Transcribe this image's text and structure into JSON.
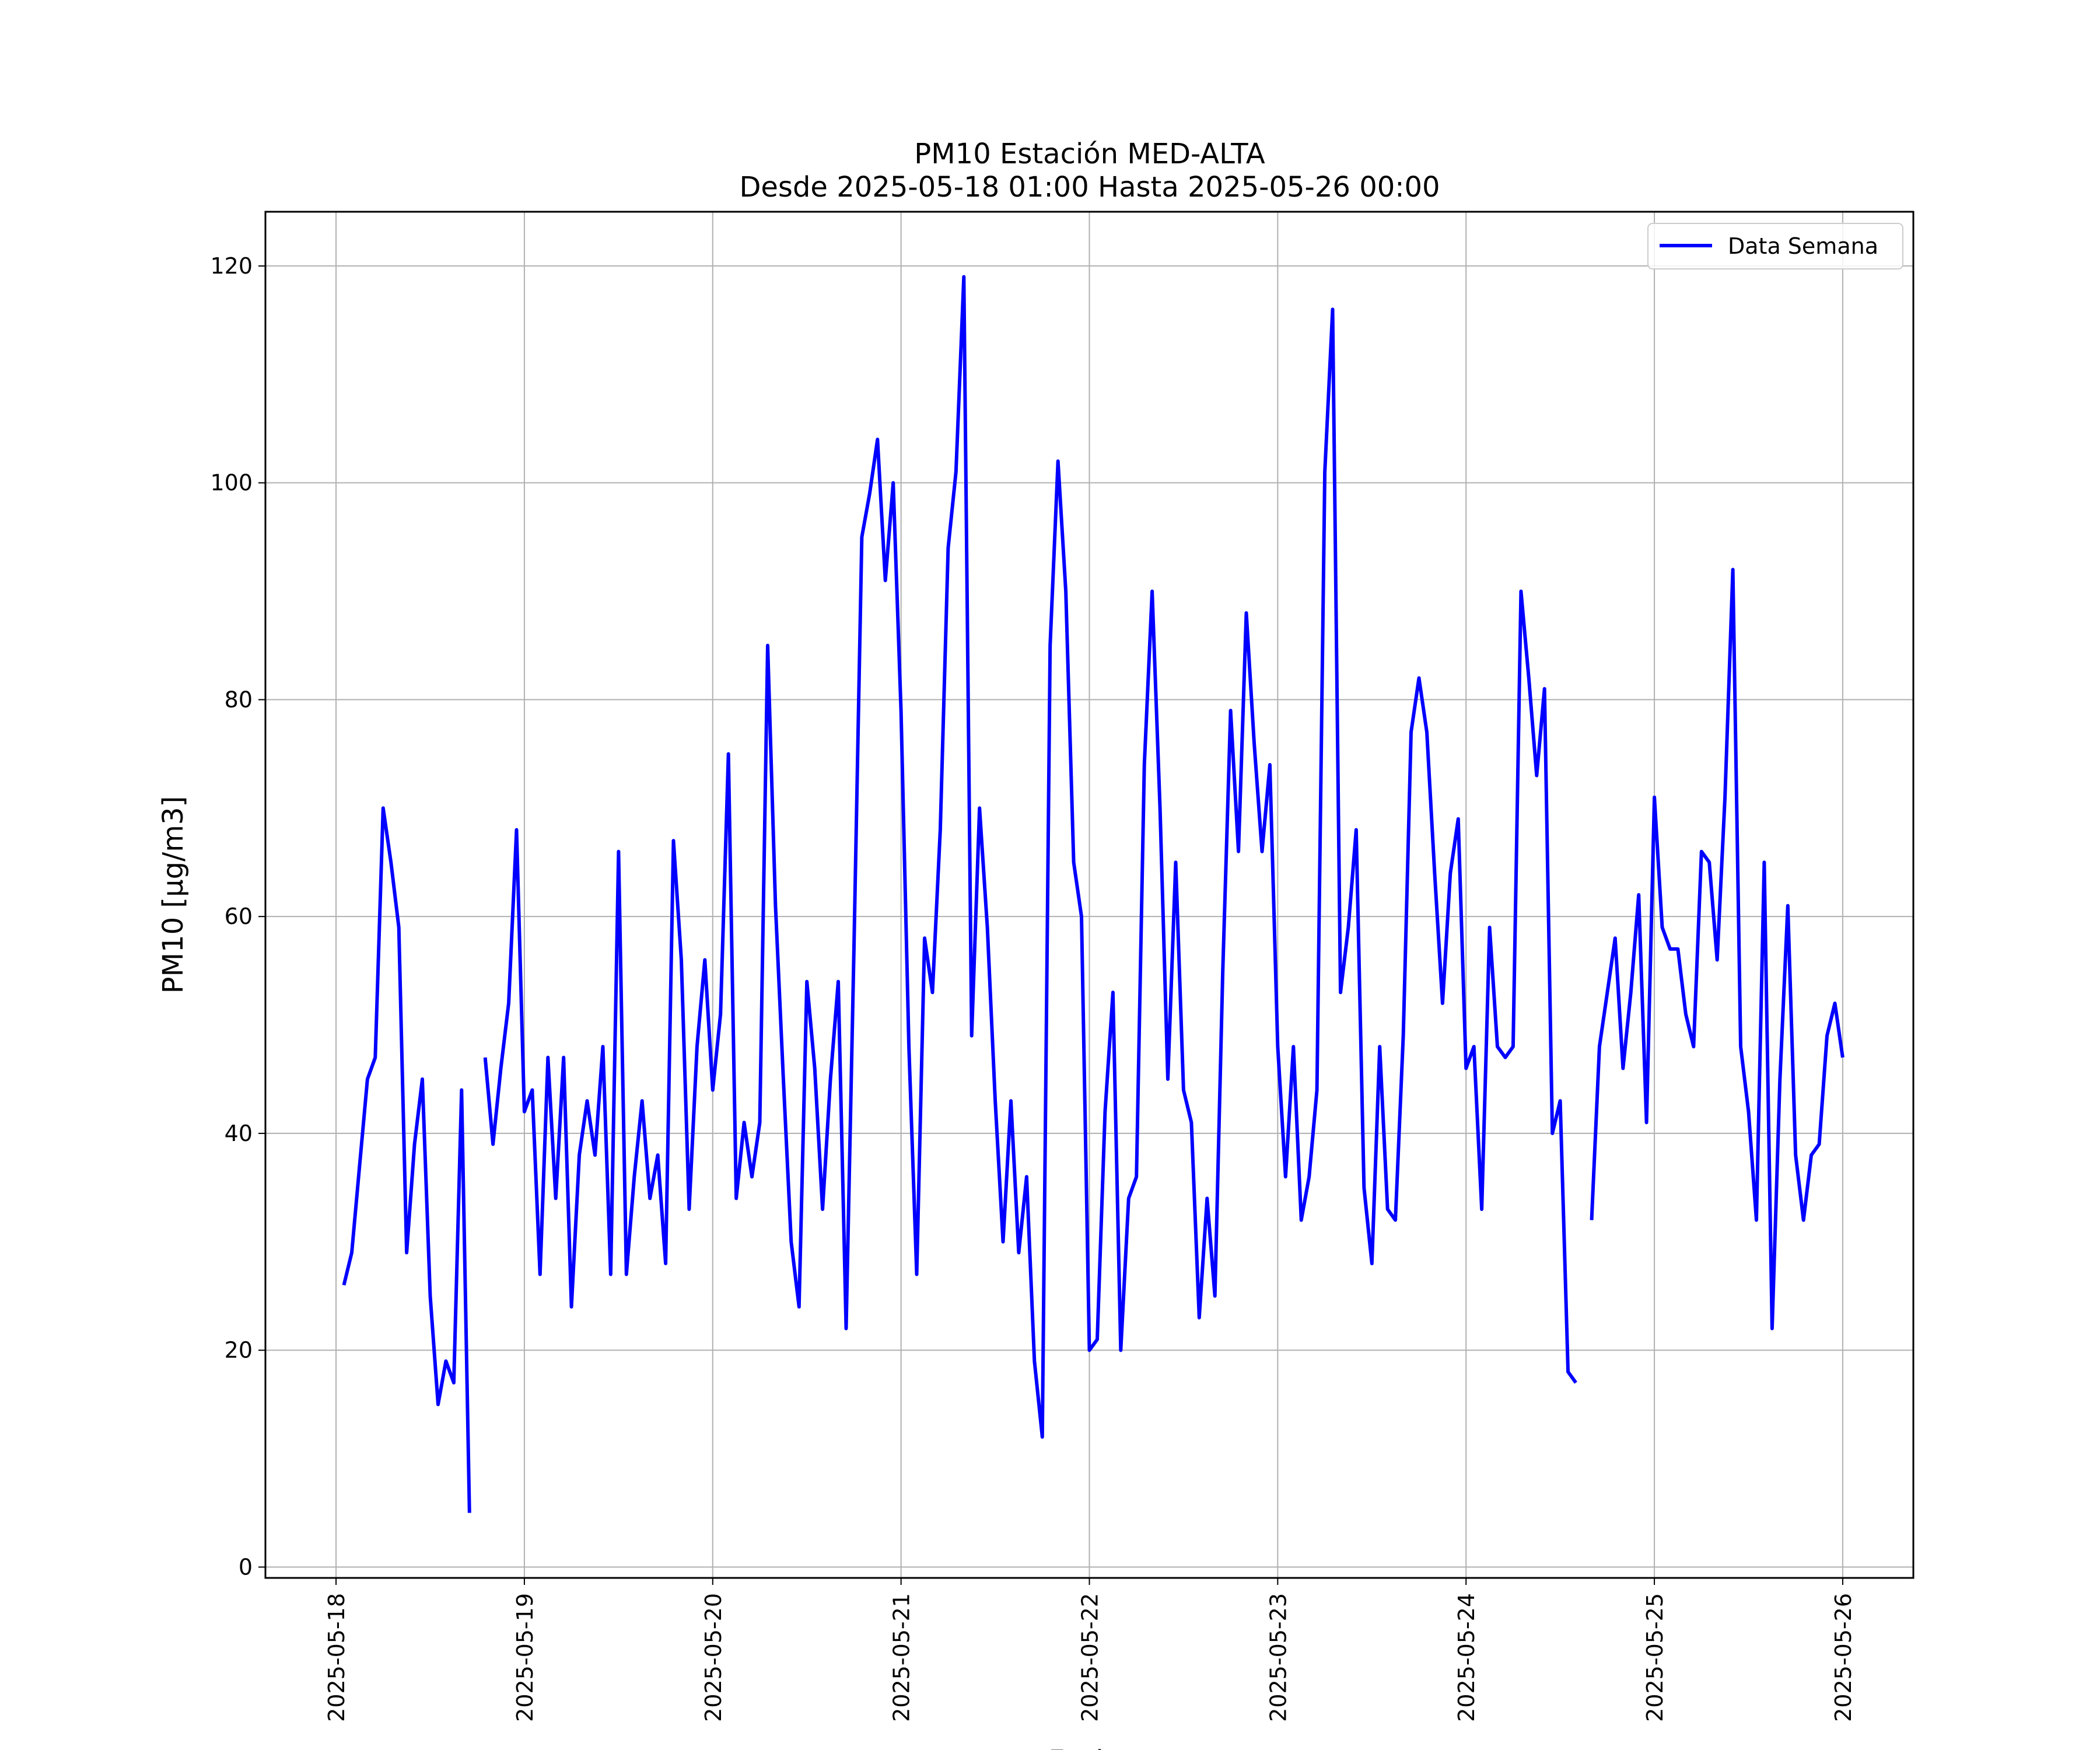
{
  "chart_data": {
    "type": "line",
    "title": "PM10 Estación MED-ALTA",
    "subtitle": "Desde 2025-05-18 01:00 Hasta 2025-05-26 00:00",
    "xlabel": "Fecha",
    "ylabel": "PM10 [μg/m3]",
    "ylim": [
      -1,
      125
    ],
    "xlim": [
      "2025-05-17 15:00",
      "2025-05-26 09:00"
    ],
    "yticks": [
      0,
      20,
      40,
      60,
      80,
      100,
      120
    ],
    "xticks": [
      "2025-05-18",
      "2025-05-19",
      "2025-05-20",
      "2025-05-21",
      "2025-05-22",
      "2025-05-23",
      "2025-05-24",
      "2025-05-25",
      "2025-05-26"
    ],
    "grid": true,
    "legend": {
      "position": "top-right",
      "entries": [
        "Data Semana"
      ]
    },
    "series": [
      {
        "name": "Data Semana",
        "color": "#0000ff",
        "points": [
          [
            "2025-05-18 01:00",
            26
          ],
          [
            "2025-05-18 02:00",
            29
          ],
          [
            "2025-05-18 03:00",
            37
          ],
          [
            "2025-05-18 04:00",
            45
          ],
          [
            "2025-05-18 05:00",
            47
          ],
          [
            "2025-05-18 06:00",
            70
          ],
          [
            "2025-05-18 07:00",
            65
          ],
          [
            "2025-05-18 08:00",
            59
          ],
          [
            "2025-05-18 09:00",
            29
          ],
          [
            "2025-05-18 10:00",
            39
          ],
          [
            "2025-05-18 11:00",
            45
          ],
          [
            "2025-05-18 12:00",
            25
          ],
          [
            "2025-05-18 13:00",
            15
          ],
          [
            "2025-05-18 14:00",
            19
          ],
          [
            "2025-05-18 15:00",
            17
          ],
          [
            "2025-05-18 16:00",
            44
          ],
          [
            "2025-05-18 17:00",
            5
          ],
          [
            "2025-05-18 18:00",
            null
          ],
          [
            "2025-05-18 19:00",
            47
          ],
          [
            "2025-05-18 20:00",
            39
          ],
          [
            "2025-05-18 21:00",
            46
          ],
          [
            "2025-05-18 22:00",
            52
          ],
          [
            "2025-05-18 23:00",
            68
          ],
          [
            "2025-05-19 00:00",
            42
          ],
          [
            "2025-05-19 01:00",
            44
          ],
          [
            "2025-05-19 02:00",
            27
          ],
          [
            "2025-05-19 03:00",
            47
          ],
          [
            "2025-05-19 04:00",
            34
          ],
          [
            "2025-05-19 05:00",
            47
          ],
          [
            "2025-05-19 06:00",
            24
          ],
          [
            "2025-05-19 07:00",
            38
          ],
          [
            "2025-05-19 08:00",
            43
          ],
          [
            "2025-05-19 09:00",
            38
          ],
          [
            "2025-05-19 10:00",
            48
          ],
          [
            "2025-05-19 11:00",
            27
          ],
          [
            "2025-05-19 12:00",
            66
          ],
          [
            "2025-05-19 13:00",
            27
          ],
          [
            "2025-05-19 14:00",
            36
          ],
          [
            "2025-05-19 15:00",
            43
          ],
          [
            "2025-05-19 16:00",
            34
          ],
          [
            "2025-05-19 17:00",
            38
          ],
          [
            "2025-05-19 18:00",
            28
          ],
          [
            "2025-05-19 19:00",
            67
          ],
          [
            "2025-05-19 20:00",
            56
          ],
          [
            "2025-05-19 21:00",
            33
          ],
          [
            "2025-05-19 22:00",
            48
          ],
          [
            "2025-05-19 23:00",
            56
          ],
          [
            "2025-05-20 00:00",
            44
          ],
          [
            "2025-05-20 01:00",
            51
          ],
          [
            "2025-05-20 02:00",
            75
          ],
          [
            "2025-05-20 03:00",
            34
          ],
          [
            "2025-05-20 04:00",
            41
          ],
          [
            "2025-05-20 05:00",
            36
          ],
          [
            "2025-05-20 06:00",
            41
          ],
          [
            "2025-05-20 07:00",
            85
          ],
          [
            "2025-05-20 08:00",
            61
          ],
          [
            "2025-05-20 09:00",
            45
          ],
          [
            "2025-05-20 10:00",
            30
          ],
          [
            "2025-05-20 11:00",
            24
          ],
          [
            "2025-05-20 12:00",
            54
          ],
          [
            "2025-05-20 13:00",
            46
          ],
          [
            "2025-05-20 14:00",
            33
          ],
          [
            "2025-05-20 15:00",
            45
          ],
          [
            "2025-05-20 16:00",
            54
          ],
          [
            "2025-05-20 17:00",
            22
          ],
          [
            "2025-05-20 18:00",
            57
          ],
          [
            "2025-05-20 19:00",
            95
          ],
          [
            "2025-05-20 20:00",
            99
          ],
          [
            "2025-05-20 21:00",
            104
          ],
          [
            "2025-05-20 22:00",
            91
          ],
          [
            "2025-05-20 23:00",
            100
          ],
          [
            "2025-05-21 00:00",
            79
          ],
          [
            "2025-05-21 01:00",
            48
          ],
          [
            "2025-05-21 02:00",
            27
          ],
          [
            "2025-05-21 03:00",
            58
          ],
          [
            "2025-05-21 04:00",
            53
          ],
          [
            "2025-05-21 05:00",
            68
          ],
          [
            "2025-05-21 06:00",
            94
          ],
          [
            "2025-05-21 07:00",
            101
          ],
          [
            "2025-05-21 08:00",
            119
          ],
          [
            "2025-05-21 09:00",
            49
          ],
          [
            "2025-05-21 10:00",
            70
          ],
          [
            "2025-05-21 11:00",
            59
          ],
          [
            "2025-05-21 12:00",
            43
          ],
          [
            "2025-05-21 13:00",
            30
          ],
          [
            "2025-05-21 14:00",
            43
          ],
          [
            "2025-05-21 15:00",
            29
          ],
          [
            "2025-05-21 16:00",
            36
          ],
          [
            "2025-05-21 17:00",
            19
          ],
          [
            "2025-05-21 18:00",
            12
          ],
          [
            "2025-05-21 19:00",
            85
          ],
          [
            "2025-05-21 20:00",
            102
          ],
          [
            "2025-05-21 21:00",
            90
          ],
          [
            "2025-05-21 22:00",
            65
          ],
          [
            "2025-05-21 23:00",
            60
          ],
          [
            "2025-05-22 00:00",
            20
          ],
          [
            "2025-05-22 01:00",
            21
          ],
          [
            "2025-05-22 02:00",
            42
          ],
          [
            "2025-05-22 03:00",
            53
          ],
          [
            "2025-05-22 04:00",
            20
          ],
          [
            "2025-05-22 05:00",
            34
          ],
          [
            "2025-05-22 06:00",
            36
          ],
          [
            "2025-05-22 07:00",
            74
          ],
          [
            "2025-05-22 08:00",
            90
          ],
          [
            "2025-05-22 09:00",
            70
          ],
          [
            "2025-05-22 10:00",
            45
          ],
          [
            "2025-05-22 11:00",
            65
          ],
          [
            "2025-05-22 12:00",
            44
          ],
          [
            "2025-05-22 13:00",
            41
          ],
          [
            "2025-05-22 14:00",
            23
          ],
          [
            "2025-05-22 15:00",
            34
          ],
          [
            "2025-05-22 16:00",
            25
          ],
          [
            "2025-05-22 17:00",
            55
          ],
          [
            "2025-05-22 18:00",
            79
          ],
          [
            "2025-05-22 19:00",
            66
          ],
          [
            "2025-05-22 20:00",
            88
          ],
          [
            "2025-05-22 21:00",
            76
          ],
          [
            "2025-05-22 22:00",
            66
          ],
          [
            "2025-05-22 23:00",
            74
          ],
          [
            "2025-05-23 00:00",
            48
          ],
          [
            "2025-05-23 01:00",
            36
          ],
          [
            "2025-05-23 02:00",
            48
          ],
          [
            "2025-05-23 03:00",
            32
          ],
          [
            "2025-05-23 04:00",
            36
          ],
          [
            "2025-05-23 05:00",
            44
          ],
          [
            "2025-05-23 06:00",
            101
          ],
          [
            "2025-05-23 07:00",
            116
          ],
          [
            "2025-05-23 08:00",
            53
          ],
          [
            "2025-05-23 09:00",
            59
          ],
          [
            "2025-05-23 10:00",
            68
          ],
          [
            "2025-05-23 11:00",
            35
          ],
          [
            "2025-05-23 12:00",
            28
          ],
          [
            "2025-05-23 13:00",
            48
          ],
          [
            "2025-05-23 14:00",
            33
          ],
          [
            "2025-05-23 15:00",
            32
          ],
          [
            "2025-05-23 16:00",
            49
          ],
          [
            "2025-05-23 17:00",
            77
          ],
          [
            "2025-05-23 18:00",
            82
          ],
          [
            "2025-05-23 19:00",
            77
          ],
          [
            "2025-05-23 20:00",
            64
          ],
          [
            "2025-05-23 21:00",
            52
          ],
          [
            "2025-05-23 22:00",
            64
          ],
          [
            "2025-05-23 23:00",
            69
          ],
          [
            "2025-05-24 00:00",
            46
          ],
          [
            "2025-05-24 01:00",
            48
          ],
          [
            "2025-05-24 02:00",
            33
          ],
          [
            "2025-05-24 03:00",
            59
          ],
          [
            "2025-05-24 04:00",
            48
          ],
          [
            "2025-05-24 05:00",
            47
          ],
          [
            "2025-05-24 06:00",
            48
          ],
          [
            "2025-05-24 07:00",
            90
          ],
          [
            "2025-05-24 08:00",
            82
          ],
          [
            "2025-05-24 09:00",
            73
          ],
          [
            "2025-05-24 10:00",
            81
          ],
          [
            "2025-05-24 11:00",
            40
          ],
          [
            "2025-05-24 12:00",
            43
          ],
          [
            "2025-05-24 13:00",
            18
          ],
          [
            "2025-05-24 14:00",
            17
          ],
          [
            "2025-05-24 15:00",
            null
          ],
          [
            "2025-05-24 16:00",
            32
          ],
          [
            "2025-05-24 17:00",
            48
          ],
          [
            "2025-05-24 18:00",
            53
          ],
          [
            "2025-05-24 19:00",
            58
          ],
          [
            "2025-05-24 20:00",
            46
          ],
          [
            "2025-05-24 21:00",
            53
          ],
          [
            "2025-05-24 22:00",
            62
          ],
          [
            "2025-05-24 23:00",
            41
          ],
          [
            "2025-05-25 00:00",
            71
          ],
          [
            "2025-05-25 01:00",
            59
          ],
          [
            "2025-05-25 02:00",
            57
          ],
          [
            "2025-05-25 03:00",
            57
          ],
          [
            "2025-05-25 04:00",
            51
          ],
          [
            "2025-05-25 05:00",
            48
          ],
          [
            "2025-05-25 06:00",
            66
          ],
          [
            "2025-05-25 07:00",
            65
          ],
          [
            "2025-05-25 08:00",
            56
          ],
          [
            "2025-05-25 09:00",
            71
          ],
          [
            "2025-05-25 10:00",
            92
          ],
          [
            "2025-05-25 11:00",
            48
          ],
          [
            "2025-05-25 12:00",
            42
          ],
          [
            "2025-05-25 13:00",
            32
          ],
          [
            "2025-05-25 14:00",
            65
          ],
          [
            "2025-05-25 15:00",
            22
          ],
          [
            "2025-05-25 16:00",
            45
          ],
          [
            "2025-05-25 17:00",
            61
          ],
          [
            "2025-05-25 18:00",
            38
          ],
          [
            "2025-05-25 19:00",
            32
          ],
          [
            "2025-05-25 20:00",
            38
          ],
          [
            "2025-05-25 21:00",
            39
          ],
          [
            "2025-05-25 22:00",
            49
          ],
          [
            "2025-05-25 23:00",
            52
          ],
          [
            "2025-05-26 00:00",
            47
          ]
        ]
      }
    ]
  }
}
